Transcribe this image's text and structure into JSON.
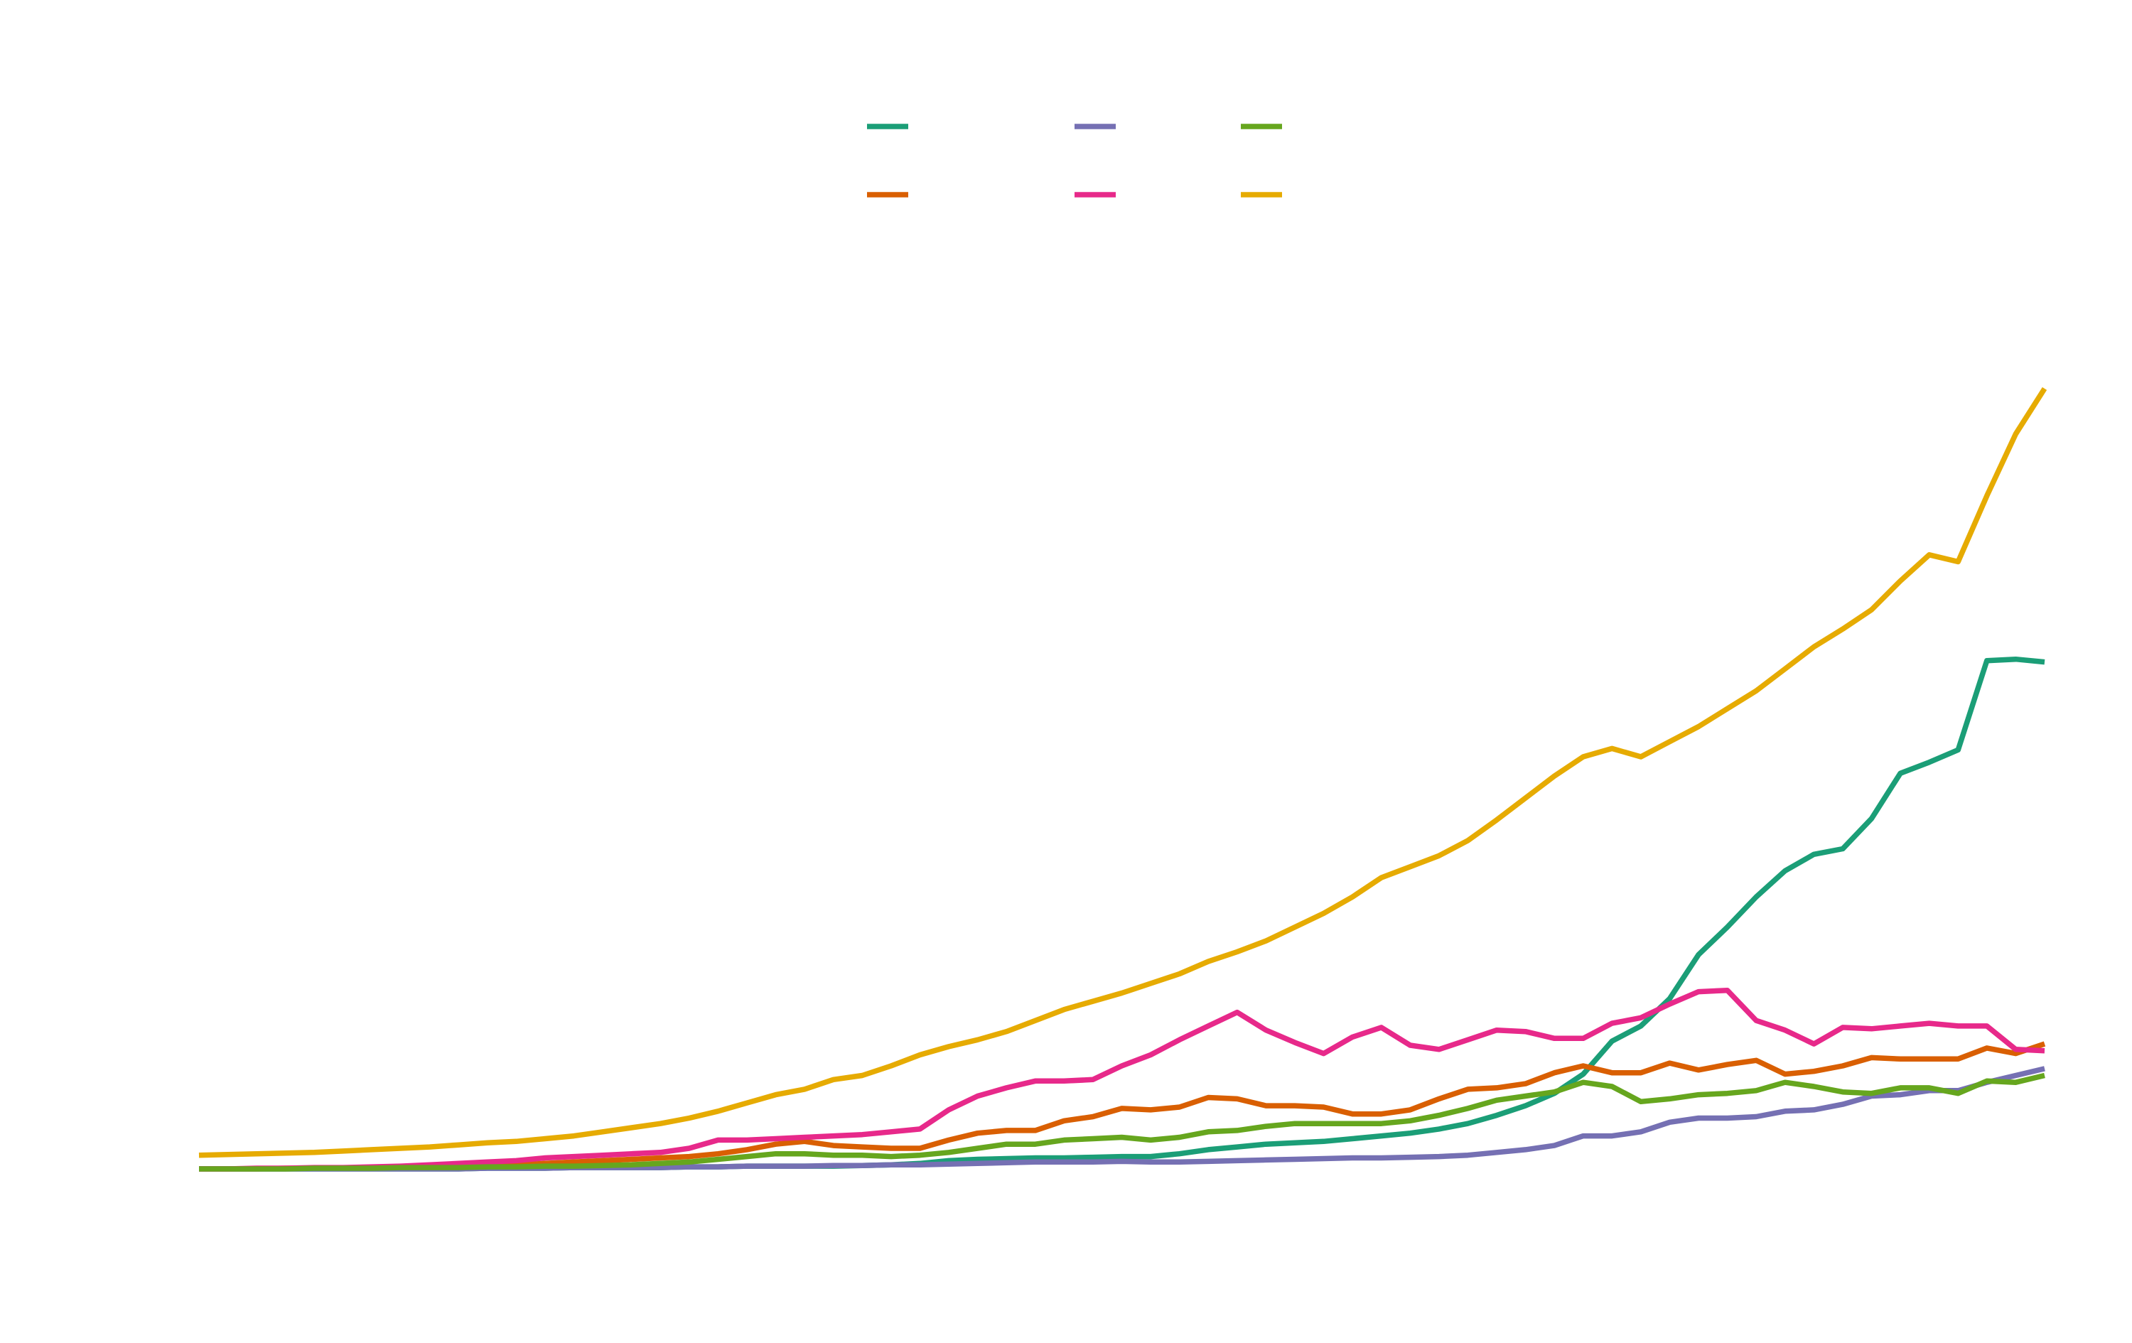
{
  "chart_data": {
    "type": "line",
    "legend": "upper center",
    "ylim": [
      0,
      600
    ],
    "series": [
      {
        "color": "#1b9e77",
        "values": [
          0,
          0,
          0,
          0,
          0,
          0,
          0,
          0,
          0,
          0,
          0.5,
          0.5,
          0.5,
          1,
          1,
          1,
          1,
          1.5,
          1.5,
          2,
          2,
          2,
          2,
          2.5,
          3,
          4,
          6,
          7,
          7.5,
          8,
          8,
          8.5,
          9,
          9,
          11,
          14,
          16,
          18,
          19,
          20,
          22,
          24,
          26,
          29,
          33,
          39,
          46,
          55,
          69,
          93,
          104,
          124,
          156,
          176,
          198,
          217,
          229,
          233,
          255,
          288,
          296,
          305,
          370,
          371,
          369
        ]
      },
      {
        "color": "#d95f02",
        "values": [
          0,
          0,
          0,
          0.5,
          0.5,
          0.5,
          1,
          1,
          1.5,
          2,
          2.5,
          3,
          4,
          5,
          6,
          7,
          8,
          9,
          11,
          14,
          18,
          20,
          17,
          16,
          15,
          15,
          21,
          26,
          28,
          28,
          35,
          38,
          44,
          43,
          45,
          52,
          51,
          46,
          46,
          45,
          40,
          40,
          43,
          51,
          58,
          59,
          62,
          70,
          75,
          70,
          70,
          77,
          72,
          76,
          79,
          69,
          71,
          75,
          81,
          80,
          80,
          80,
          88,
          84,
          91
        ]
      },
      {
        "color": "#7570b3",
        "values": [
          0,
          0,
          0,
          0,
          0,
          0,
          0,
          0,
          0,
          0,
          0.5,
          0.5,
          0.5,
          1,
          1,
          1,
          1,
          1.5,
          1.5,
          2,
          2,
          2,
          2.5,
          2.5,
          3,
          3,
          3.5,
          4,
          4.5,
          5,
          5,
          5,
          5.5,
          5,
          5,
          5.5,
          6,
          6.5,
          7,
          7.5,
          8,
          8,
          8.5,
          9,
          10,
          12,
          14,
          17,
          24,
          24,
          27,
          34,
          37,
          37,
          38,
          42,
          43,
          47,
          53,
          54,
          57,
          57,
          63,
          68,
          73
        ]
      },
      {
        "color": "#e7298a",
        "values": [
          0,
          0,
          0.5,
          0.5,
          1,
          1,
          1.5,
          2,
          3,
          4,
          5,
          6,
          8,
          9,
          10,
          11,
          12,
          15,
          21,
          21,
          22,
          23,
          24,
          25,
          27,
          29,
          43,
          53,
          59,
          64,
          64,
          65,
          75,
          83,
          94,
          104,
          114,
          101,
          92,
          84,
          96,
          103,
          90,
          87,
          94,
          101,
          100,
          95,
          95,
          106,
          110,
          120,
          129,
          130,
          108,
          101,
          91,
          103,
          102,
          104,
          106,
          104,
          104,
          87,
          86
        ]
      },
      {
        "color": "#66a61e",
        "values": [
          0,
          0,
          0,
          0,
          0.5,
          0.5,
          0.5,
          1,
          1,
          1,
          1.5,
          1.5,
          2,
          2,
          2.5,
          3,
          4,
          5,
          7,
          9,
          11,
          11,
          10,
          10,
          9,
          10,
          12,
          15,
          18,
          18,
          21,
          22,
          23,
          21,
          23,
          27,
          28,
          31,
          33,
          33,
          33,
          33,
          35,
          39,
          44,
          50,
          53,
          56,
          63,
          60,
          49,
          51,
          54,
          55,
          57,
          63,
          60,
          56,
          55,
          59,
          59,
          55,
          64,
          63,
          68
        ]
      },
      {
        "color": "#e6ab02",
        "values": [
          10,
          10.5,
          11,
          11.5,
          12,
          13,
          14,
          15,
          16,
          17.5,
          19,
          20,
          22,
          24,
          27,
          30,
          33,
          37,
          42,
          48,
          54,
          58,
          65,
          68,
          75,
          83,
          89,
          94,
          100,
          108,
          116,
          122,
          128,
          135,
          142,
          151,
          158,
          166,
          176,
          186,
          198,
          212,
          220,
          228,
          239,
          254,
          270,
          286,
          300,
          306,
          300,
          311,
          322,
          335,
          348,
          364,
          380,
          393,
          407,
          428,
          447,
          442,
          490,
          535,
          568
        ]
      }
    ]
  }
}
